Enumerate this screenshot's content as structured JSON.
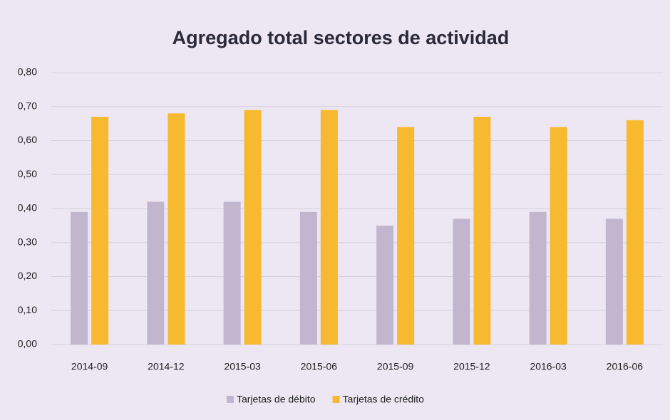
{
  "chart_data": {
    "type": "bar",
    "title": "Agregado total sectores de actividad",
    "categories": [
      "2014-09",
      "2014-12",
      "2015-03",
      "2015-06",
      "2015-09",
      "2015-12",
      "2016-03",
      "2016-06"
    ],
    "series": [
      {
        "name": "Tarjetas de débito",
        "color": "#c2b6cf",
        "values": [
          0.39,
          0.42,
          0.42,
          0.39,
          0.35,
          0.37,
          0.39,
          0.37
        ]
      },
      {
        "name": "Tarjetas de crédito",
        "color": "#f6b92f",
        "values": [
          0.67,
          0.68,
          0.69,
          0.69,
          0.64,
          0.67,
          0.64,
          0.66
        ]
      }
    ],
    "ylim": [
      0,
      0.8
    ],
    "yticks": [
      {
        "value": 0,
        "label": "0,00"
      },
      {
        "value": 0.1,
        "label": "0,10"
      },
      {
        "value": 0.2,
        "label": "0,20"
      },
      {
        "value": 0.3,
        "label": "0,30"
      },
      {
        "value": 0.4,
        "label": "0,40"
      },
      {
        "value": 0.5,
        "label": "0,50"
      },
      {
        "value": 0.6,
        "label": "0,60"
      },
      {
        "value": 0.7,
        "label": "0,70"
      },
      {
        "value": 0.8,
        "label": "0,80"
      }
    ],
    "grid": true,
    "legend": "bottom"
  }
}
